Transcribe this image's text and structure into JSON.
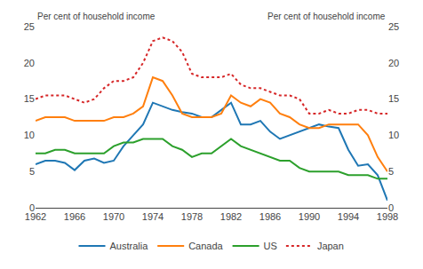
{
  "chart_data": {
    "type": "line",
    "ylabel": "Per cent of household income",
    "y2label": "Per cent of household income",
    "x": [
      1962,
      1963,
      1964,
      1965,
      1966,
      1967,
      1968,
      1969,
      1970,
      1971,
      1972,
      1973,
      1974,
      1975,
      1976,
      1977,
      1978,
      1979,
      1980,
      1981,
      1982,
      1983,
      1984,
      1985,
      1986,
      1987,
      1988,
      1989,
      1990,
      1991,
      1992,
      1993,
      1994,
      1995,
      1996,
      1997,
      1998
    ],
    "series": [
      {
        "name": "Australia",
        "line_style": "solid",
        "values": [
          6.0,
          6.5,
          6.5,
          6.2,
          5.2,
          6.5,
          6.8,
          6.2,
          6.5,
          8.5,
          10.0,
          11.5,
          14.5,
          14.0,
          13.5,
          13.2,
          13.0,
          12.5,
          12.5,
          13.5,
          14.5,
          11.5,
          11.5,
          12.0,
          10.5,
          9.5,
          10.0,
          10.5,
          11.0,
          11.5,
          11.2,
          11.0,
          8.0,
          5.8,
          6.0,
          4.5,
          1.0
        ]
      },
      {
        "name": "Canada",
        "line_style": "solid",
        "values": [
          12.0,
          12.5,
          12.5,
          12.5,
          12.0,
          12.0,
          12.0,
          12.0,
          12.5,
          12.5,
          13.0,
          14.0,
          18.0,
          17.5,
          15.5,
          13.0,
          12.5,
          12.5,
          12.5,
          13.0,
          15.5,
          14.5,
          14.0,
          15.0,
          14.5,
          13.0,
          12.5,
          11.5,
          11.0,
          11.0,
          11.5,
          11.5,
          11.5,
          11.5,
          10.0,
          7.0,
          5.0
        ]
      },
      {
        "name": "US",
        "line_style": "solid",
        "values": [
          7.5,
          7.5,
          8.0,
          8.0,
          7.5,
          7.5,
          7.5,
          7.5,
          8.5,
          9.0,
          9.0,
          9.5,
          9.5,
          9.5,
          8.5,
          8.0,
          7.0,
          7.5,
          7.5,
          8.5,
          9.5,
          8.5,
          8.0,
          7.5,
          7.0,
          6.5,
          6.5,
          5.5,
          5.0,
          5.0,
          5.0,
          5.0,
          4.5,
          4.5,
          4.5,
          4.0,
          4.0
        ]
      },
      {
        "name": "Japan",
        "line_style": "dotted",
        "values": [
          15.0,
          15.5,
          15.5,
          15.5,
          15.0,
          14.5,
          15.0,
          16.5,
          17.5,
          17.5,
          18.0,
          20.0,
          23.0,
          23.5,
          23.0,
          21.5,
          18.5,
          18.0,
          18.0,
          18.0,
          18.5,
          17.0,
          16.5,
          16.5,
          16.0,
          15.5,
          15.5,
          15.0,
          13.0,
          13.0,
          13.5,
          13.0,
          13.0,
          13.5,
          13.5,
          13.0,
          13.0
        ]
      }
    ],
    "xlim": [
      1962,
      1998
    ],
    "xticks": [
      1962,
      1966,
      1970,
      1974,
      1978,
      1982,
      1986,
      1990,
      1994,
      1998
    ],
    "ylim": [
      0,
      25
    ],
    "yticks": [
      0,
      5,
      10,
      15,
      20,
      25
    ],
    "y2lim": [
      0,
      25
    ],
    "y2ticks": [
      0,
      5,
      10,
      15,
      20,
      25
    ],
    "grid": false,
    "legend": "bottom"
  }
}
